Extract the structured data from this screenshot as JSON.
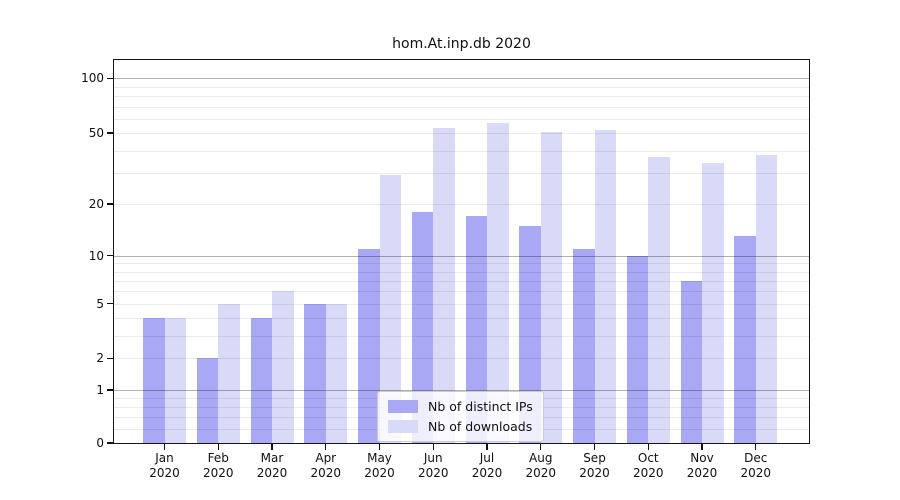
{
  "chart_data": {
    "type": "bar",
    "title": "hom.At.inp.db 2020",
    "categories": [
      "Jan",
      "Feb",
      "Mar",
      "Apr",
      "May",
      "Jun",
      "Jul",
      "Aug",
      "Sep",
      "Oct",
      "Nov",
      "Dec"
    ],
    "year": "2020",
    "series": [
      {
        "name": "Nb of distinct IPs",
        "color": "#a8a8f4",
        "values": [
          4,
          2,
          4,
          5,
          11,
          18,
          17,
          15,
          11,
          10,
          7,
          13
        ]
      },
      {
        "name": "Nb of downloads",
        "color": "#d9d9f8",
        "values": [
          4,
          5,
          6,
          5,
          29,
          53,
          57,
          51,
          52,
          37,
          34,
          38
        ]
      }
    ],
    "yscale": "symlog",
    "yticks": [
      0,
      1,
      2,
      5,
      10,
      20,
      50,
      100
    ],
    "ylim": [
      0,
      129
    ],
    "grid": true,
    "legend_position": "bottom-center"
  }
}
